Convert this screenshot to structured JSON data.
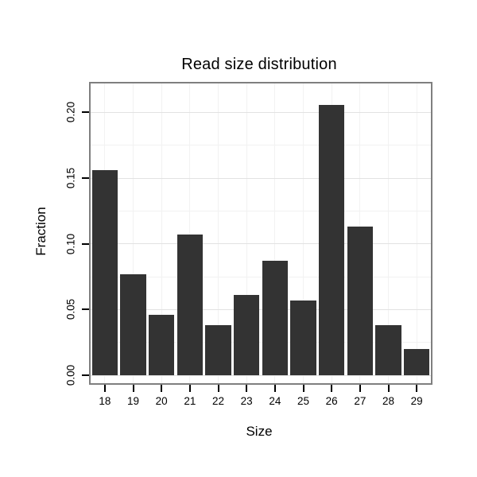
{
  "chart_data": {
    "type": "bar",
    "title": "Read size distribution",
    "xlabel": "Size",
    "ylabel": "Fraction",
    "categories": [
      "18",
      "19",
      "20",
      "21",
      "22",
      "23",
      "24",
      "25",
      "26",
      "27",
      "28",
      "29"
    ],
    "values": [
      0.156,
      0.077,
      0.046,
      0.107,
      0.038,
      0.061,
      0.087,
      0.057,
      0.206,
      0.113,
      0.038,
      0.02
    ],
    "yticks": [
      0.0,
      0.05,
      0.1,
      0.15,
      0.2
    ],
    "ylim": [
      0,
      0.216
    ],
    "grid": "on",
    "legend": "none",
    "colors": {
      "bar": "#333333",
      "grid_major": "#e2e2e2",
      "grid_minor": "#f2f2f2",
      "panel_border": "#7f7f7f",
      "tick": "#000000",
      "text": "#000000",
      "background": "#ffffff"
    }
  }
}
